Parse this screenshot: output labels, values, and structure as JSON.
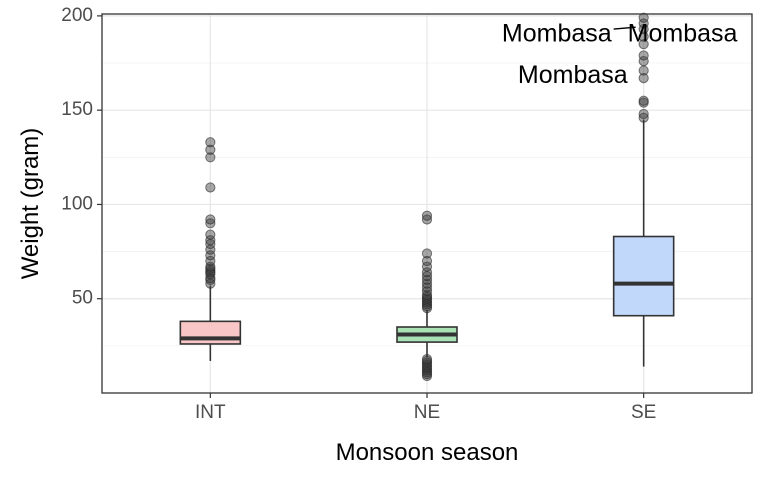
{
  "chart_data": {
    "type": "boxplot",
    "xlabel": "Monsoon season",
    "ylabel": "Weight (gram)",
    "ylim": [
      0,
      201
    ],
    "y_ticks": [
      50,
      100,
      150,
      200
    ],
    "y_tick_labels": [
      "50",
      "100",
      "150",
      "200"
    ],
    "grid": true,
    "categories": [
      "INT",
      "NE",
      "SE"
    ],
    "boxes": [
      {
        "category": "INT",
        "color": "#f8c6c6",
        "whisker_low": 17,
        "q1": 26,
        "median": 29,
        "q3": 38,
        "whisker_high": 57,
        "outliers": [
          58,
          60,
          61,
          63,
          64,
          65,
          66,
          67,
          70,
          73,
          76,
          79,
          81,
          84,
          90,
          92,
          109,
          125,
          129,
          133
        ]
      },
      {
        "category": "NE",
        "color": "#a9e2b4",
        "whisker_low": 19,
        "q1": 27,
        "median": 31,
        "q3": 35,
        "whisker_high": 44,
        "outliers": [
          9,
          10,
          11,
          12,
          13,
          14,
          15,
          16,
          17,
          18,
          45,
          46,
          47,
          48,
          49,
          50,
          51,
          52,
          54,
          56,
          58,
          60,
          62,
          64,
          67,
          70,
          74,
          92,
          94
        ]
      },
      {
        "category": "SE",
        "color": "#c2d8fb",
        "whisker_low": 14,
        "q1": 41,
        "median": 58,
        "q3": 83,
        "whisker_high": 145,
        "outliers": [
          146,
          148,
          154,
          155,
          167,
          171,
          176,
          179,
          185,
          189,
          193,
          196,
          199
        ]
      }
    ],
    "annotations": [
      {
        "text": "Mombasa",
        "x_cat": "SE",
        "y": 190,
        "anchor": "end",
        "dx": -32
      },
      {
        "text": "Mombasa",
        "x_cat": "SE",
        "y": 190,
        "anchor": "start",
        "dx": -16
      },
      {
        "text": "Mombasa",
        "x_cat": "SE",
        "y": 168,
        "anchor": "end",
        "dx": -16
      }
    ]
  }
}
